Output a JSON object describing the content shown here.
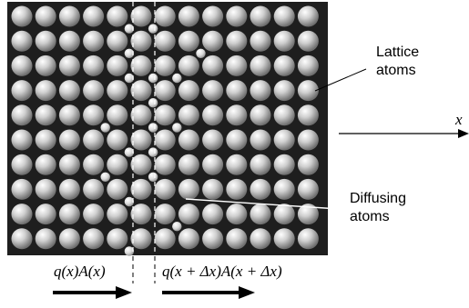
{
  "labels": {
    "lattice_line1": "Lattice",
    "lattice_line2": "atoms",
    "diffusing_line1": "Diffusing",
    "diffusing_line2": "atoms",
    "axis": "x",
    "flux_left": "q(x)A(x)",
    "flux_right": "q(x + Δx)A(x + Δx)"
  },
  "lattice": {
    "columns": 13,
    "rows": 10,
    "gap_after_column": 5,
    "background_color": "#1e1e1e",
    "atom_color": "#c8c8c8",
    "diffusing_atom_color": "#d8d8d8"
  },
  "diffusing_atoms": [
    {
      "cell": [
        4,
        0
      ]
    },
    {
      "cell": [
        5,
        0
      ]
    },
    {
      "cell": [
        4,
        1
      ]
    },
    {
      "cell": [
        7,
        1
      ]
    },
    {
      "cell": [
        4,
        2
      ]
    },
    {
      "cell": [
        5,
        2
      ]
    },
    {
      "cell": [
        6,
        2
      ]
    },
    {
      "cell": [
        5,
        3
      ]
    },
    {
      "cell": [
        3,
        4
      ]
    },
    {
      "cell": [
        5,
        4
      ]
    },
    {
      "cell": [
        6,
        4
      ]
    },
    {
      "cell": [
        4,
        5
      ]
    },
    {
      "cell": [
        5,
        5
      ]
    },
    {
      "cell": [
        3,
        6
      ]
    },
    {
      "cell": [
        5,
        6
      ]
    },
    {
      "cell": [
        4,
        7
      ]
    },
    {
      "cell": [
        6,
        8
      ]
    },
    {
      "cell": [
        4,
        9
      ]
    }
  ]
}
